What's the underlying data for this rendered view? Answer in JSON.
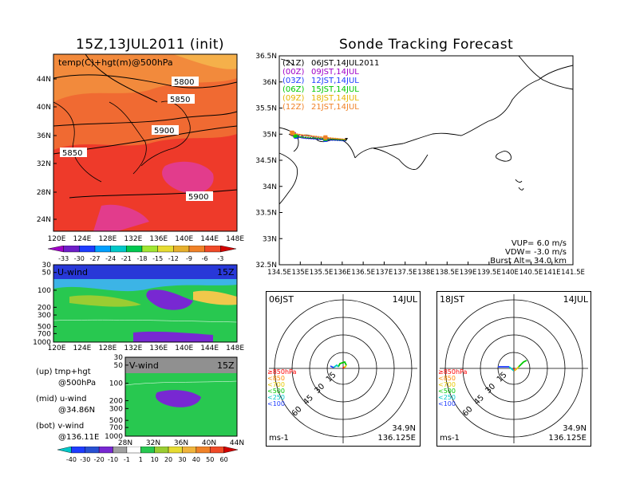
{
  "left_title": "15Z,13JUL2011 (init)",
  "right_title": "Sonde Tracking Forecast",
  "top_map": {
    "label": "temp(C)+hgt(m)@500hPa",
    "lat_ticks": [
      "44N",
      "40N",
      "36N",
      "32N",
      "28N",
      "24N"
    ],
    "lon_ticks": [
      "120E",
      "124E",
      "128E",
      "132E",
      "136E",
      "140E",
      "144E",
      "148E"
    ],
    "contours": [
      "5800",
      "5850",
      "5900",
      "5850",
      "5900"
    ]
  },
  "colorbar_top": [
    "-33",
    "-30",
    "-27",
    "-24",
    "-21",
    "-18",
    "-15",
    "-12",
    "-9",
    "-6",
    "-3"
  ],
  "u_panel": {
    "title": "U-wind",
    "time": "15Z",
    "p_ticks": [
      "30",
      "50",
      "100",
      "200",
      "300",
      "500",
      "700",
      "1000"
    ],
    "x_ticks": [
      "120E",
      "124E",
      "128E",
      "132E",
      "136E",
      "140E",
      "144E",
      "148E"
    ]
  },
  "v_panel": {
    "title": "V-wind",
    "time": "15Z",
    "p_ticks": [
      "30",
      "50",
      "100",
      "200",
      "300",
      "500",
      "700",
      "1000"
    ],
    "x_ticks": [
      "28N",
      "32N",
      "36N",
      "40N",
      "44N"
    ]
  },
  "colorbar_bottom": [
    "-40",
    "-30",
    "-20",
    "-10",
    "-1",
    "1",
    "10",
    "20",
    "30",
    "40",
    "50",
    "60"
  ],
  "side_legend": [
    {
      "a": "(up) tmp+hgt",
      "b": "@500hPa"
    },
    {
      "a": "(mid) u-wind",
      "b": "@34.86N"
    },
    {
      "a": "(bot) v-wind",
      "b": "@136.11E"
    }
  ],
  "track_map": {
    "lat_ticks": [
      "36.5N",
      "36N",
      "35.5N",
      "35N",
      "34.5N",
      "34N",
      "33.5N",
      "33N",
      "32.5N"
    ],
    "lon_ticks": [
      "134.5E",
      "135E",
      "135.5E",
      "136E",
      "136.5E",
      "137E",
      "137.5E",
      "138E",
      "138.5E",
      "139E",
      "139.5E",
      "140E",
      "140.5E",
      "141E",
      "141.5E"
    ],
    "launches": [
      {
        "z": "(21Z)",
        "t": "06JST,14JUL2011",
        "color": "#000000"
      },
      {
        "z": "(00Z)",
        "t": "09JST,14JUL",
        "color": "#a000c8"
      },
      {
        "z": "(03Z)",
        "t": "12JST,14JUL",
        "color": "#1e3cff"
      },
      {
        "z": "(06Z)",
        "t": "15JST,14JUL",
        "color": "#00c800"
      },
      {
        "z": "(09Z)",
        "t": "18JST,14JUL",
        "color": "#e6b400"
      },
      {
        "z": "(12Z)",
        "t": "21JST,14JUL",
        "color": "#f08228"
      }
    ],
    "vup": "VUP= 6.0 m/s",
    "vdw": "VDW= -3.0 m/s",
    "burst": "Burst Alt= 34.0 km"
  },
  "polar1": {
    "time": "06JST",
    "date": "14JUL",
    "r": [
      "15",
      "30",
      "45",
      "60"
    ],
    "unit": "ms-1",
    "lat": "34.9N",
    "lon": "136.125E",
    "levels": [
      {
        "t": "≥850hPa",
        "c": "#ff0000"
      },
      {
        "t": "<850",
        "c": "#ff8c00"
      },
      {
        "t": "<700",
        "c": "#e6c800"
      },
      {
        "t": "<500",
        "c": "#00c800"
      },
      {
        "t": "<250",
        "c": "#00c8c8"
      },
      {
        "t": "<100",
        "c": "#1e3cff"
      }
    ]
  },
  "polar2": {
    "time": "18JST",
    "date": "14JUL",
    "r": [
      "15",
      "30",
      "45",
      "60"
    ],
    "unit": "ms-1",
    "lat": "34.9N",
    "lon": "136.125E",
    "levels": [
      {
        "t": "≥850hPa",
        "c": "#ff0000"
      },
      {
        "t": "<850",
        "c": "#ff8c00"
      },
      {
        "t": "<700",
        "c": "#e6c800"
      },
      {
        "t": "<500",
        "c": "#00c800"
      },
      {
        "t": "<250",
        "c": "#00c8c8"
      },
      {
        "t": "<100",
        "c": "#1e3cff"
      }
    ]
  }
}
